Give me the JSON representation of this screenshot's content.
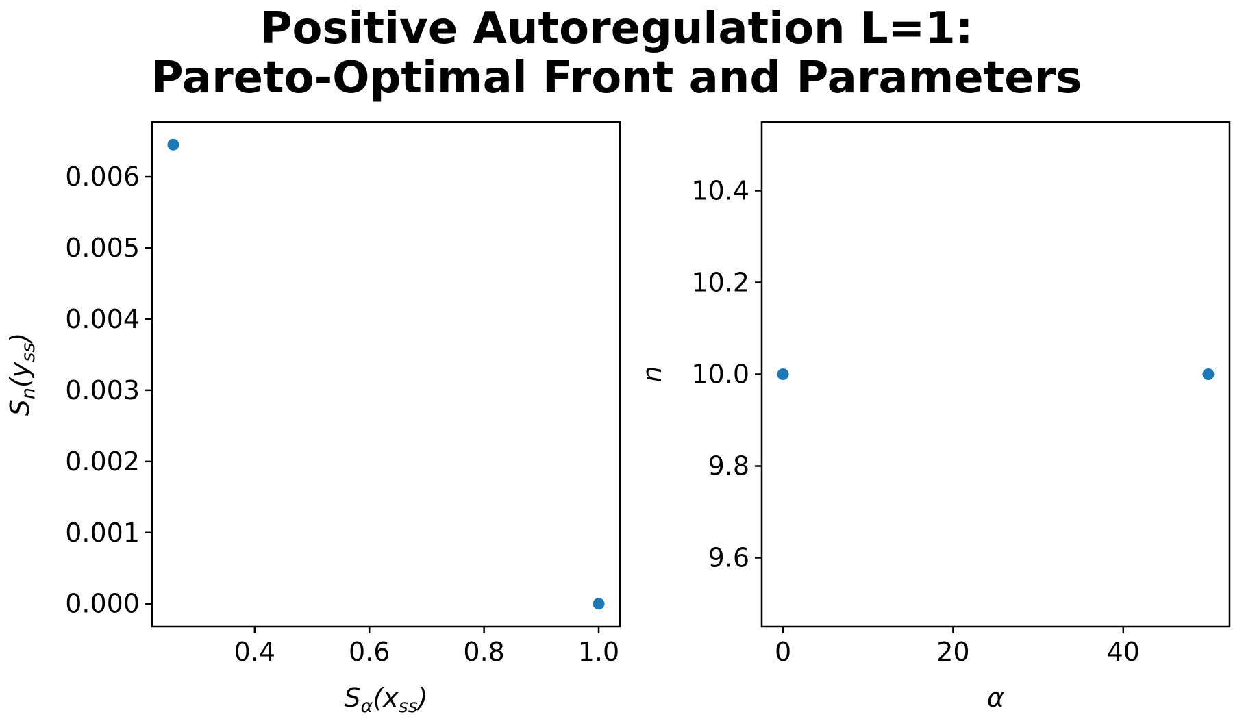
{
  "figure": {
    "title_lines": [
      "Positive Autoregulation L=1:",
      "Pareto-Optimal Front and Parameters"
    ]
  },
  "colors": {
    "marker": "#1f77b4",
    "axes": "#000000",
    "background": "#ffffff"
  },
  "chart_data": [
    {
      "type": "scatter",
      "title": "",
      "xlabel": {
        "main": "S",
        "sub": "α",
        "arg": "(x",
        "argsub": "ss",
        "close": ")"
      },
      "ylabel": {
        "main": "S",
        "sub": "n",
        "arg": "(y",
        "argsub": "ss",
        "close": ")"
      },
      "xlim": [
        0.221,
        1.037
      ],
      "ylim": [
        -0.00032,
        0.00677
      ],
      "xticks": [
        0.4,
        0.6,
        0.8,
        1.0
      ],
      "xtick_labels": [
        "0.4",
        "0.6",
        "0.8",
        "1.0"
      ],
      "yticks": [
        0.0,
        0.001,
        0.002,
        0.003,
        0.004,
        0.005,
        0.006
      ],
      "ytick_labels": [
        "0.000",
        "0.001",
        "0.002",
        "0.003",
        "0.004",
        "0.005",
        "0.006"
      ],
      "grid": false,
      "points": [
        {
          "x": 0.258,
          "y": 0.00645
        },
        {
          "x": 1.0,
          "y": 0.0
        }
      ]
    },
    {
      "type": "scatter",
      "title": "",
      "xlabel": {
        "main": "α"
      },
      "ylabel": {
        "main": "n"
      },
      "xlim": [
        -2.5,
        52.5
      ],
      "ylim": [
        9.45,
        10.55
      ],
      "xticks": [
        0,
        20,
        40
      ],
      "xtick_labels": [
        "0",
        "20",
        "40"
      ],
      "yticks": [
        9.6,
        9.8,
        10.0,
        10.2,
        10.4
      ],
      "ytick_labels": [
        "9.6",
        "9.8",
        "10.0",
        "10.2",
        "10.4"
      ],
      "grid": false,
      "points": [
        {
          "x": 0,
          "y": 10.0
        },
        {
          "x": 50,
          "y": 10.0
        }
      ]
    }
  ]
}
